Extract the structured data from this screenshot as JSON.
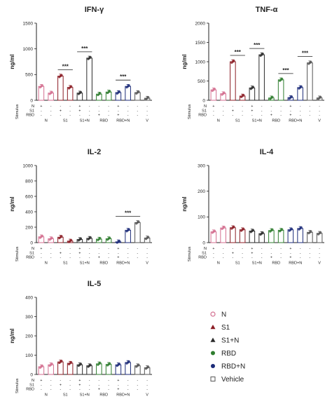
{
  "legend": [
    {
      "label": "N",
      "color": "#d36e8f",
      "marker": "circle-hollow"
    },
    {
      "label": "S1",
      "color": "#8b1c24",
      "marker": "triangle"
    },
    {
      "label": "S1+N",
      "color": "#2a2a2a",
      "marker": "triangle"
    },
    {
      "label": "RBD",
      "color": "#2f7d2f",
      "marker": "circle"
    },
    {
      "label": "RBD+N",
      "color": "#1b2a78",
      "marker": "circle"
    },
    {
      "label": "Vehicle",
      "color": "#555555",
      "marker": "square-hollow"
    }
  ],
  "stimulus_label": "Stimulus",
  "row_labels": [
    "N",
    "S1",
    "RBD"
  ],
  "groups": [
    "N",
    "S1",
    "S1+N",
    "RBD",
    "RBD+N",
    "V"
  ],
  "bar_colors": [
    "#d36e8f",
    "#d36e8f",
    "#8b1c24",
    "#8b1c24",
    "#2a2a2a",
    "#2a2a2a",
    "#2f7d2f",
    "#2f7d2f",
    "#1b2a78",
    "#1b2a78",
    "#555555",
    "#555555"
  ],
  "signs": {
    "N": [
      "+",
      "-",
      "-",
      "-",
      "+",
      "-",
      "-",
      "-",
      "+",
      "-",
      "-",
      "-"
    ],
    "S1": [
      "-",
      "-",
      "+",
      "-",
      "+",
      "-",
      "-",
      "-",
      "-",
      "-",
      "-",
      "-"
    ],
    "RBD": [
      "-",
      "-",
      "-",
      "-",
      "-",
      "-",
      "+",
      "-",
      "+",
      "-",
      "-",
      "-"
    ]
  },
  "chart_data": [
    {
      "type": "bar",
      "title": "IFN-γ",
      "ylabel": "ng/ml",
      "ylim": [
        0,
        1500
      ],
      "yticks": [
        0,
        500,
        1000,
        1500
      ],
      "values": [
        270,
        140,
        470,
        250,
        140,
        820,
        120,
        160,
        150,
        270,
        150,
        40
      ],
      "significance": [
        {
          "from": 2,
          "to": 3,
          "label": "***"
        },
        {
          "from": 4,
          "to": 5,
          "label": "***"
        },
        {
          "from": 8,
          "to": 9,
          "label": "***"
        }
      ]
    },
    {
      "type": "bar",
      "title": "TNF-α",
      "ylabel": "ng/ml",
      "ylim": [
        0,
        2000
      ],
      "yticks": [
        0,
        500,
        1000,
        1500,
        2000
      ],
      "values": [
        270,
        170,
        1000,
        110,
        320,
        1180,
        60,
        530,
        70,
        330,
        970,
        60
      ],
      "significance": [
        {
          "from": 2,
          "to": 3,
          "label": "***"
        },
        {
          "from": 4,
          "to": 5,
          "label": "***"
        },
        {
          "from": 7,
          "to": 8,
          "label": "***"
        },
        {
          "from": 9,
          "to": 10,
          "label": "***"
        }
      ]
    },
    {
      "type": "bar",
      "title": "IL-2",
      "ylabel": "ng/ml",
      "ylim": [
        0,
        1000
      ],
      "yticks": [
        0,
        200,
        400,
        600,
        800,
        1000
      ],
      "values": [
        75,
        50,
        70,
        20,
        40,
        55,
        45,
        50,
        10,
        160,
        260,
        60
      ],
      "significance": [
        {
          "from": 8,
          "to": 10,
          "label": "***"
        }
      ]
    },
    {
      "type": "bar",
      "title": "IL-4",
      "ylabel": "ng/ml",
      "ylim": [
        0,
        300
      ],
      "yticks": [
        0,
        100,
        200,
        300
      ],
      "values": [
        42,
        57,
        58,
        50,
        45,
        35,
        47,
        48,
        50,
        55,
        40,
        36
      ],
      "significance": []
    },
    {
      "type": "bar",
      "title": "IL-5",
      "ylabel": "ng/ml",
      "ylim": [
        0,
        400
      ],
      "yticks": [
        0,
        100,
        200,
        300,
        400
      ],
      "values": [
        40,
        50,
        65,
        58,
        50,
        45,
        55,
        52,
        50,
        62,
        45,
        35
      ],
      "significance": []
    }
  ]
}
